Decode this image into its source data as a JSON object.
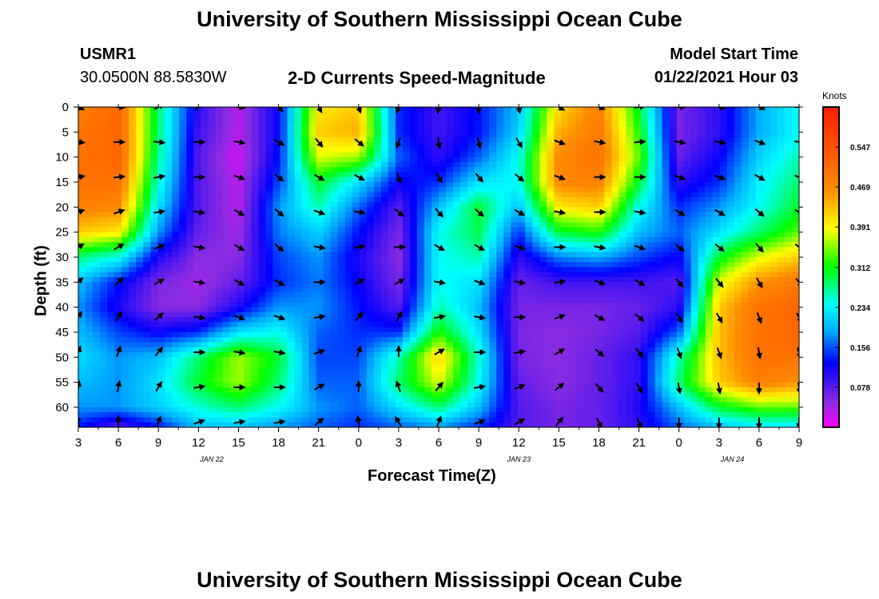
{
  "page": {
    "title_top": "University of Southern Mississippi Ocean Cube",
    "title_bottom": "University of Southern Mississippi Ocean Cube",
    "station": "USMR1",
    "location": "30.0500N 88.5830W",
    "plot_title": "2-D Currents Speed-Magnitude",
    "model_start_label": "Model Start Time",
    "model_start_value": "01/22/2021 Hour 03"
  },
  "chart_data": {
    "type": "heatmap",
    "title": "2-D Currents Speed-Magnitude",
    "xlabel": "Forecast Time(Z)",
    "ylabel": "Depth (ft)",
    "x_tick_labels": [
      "3",
      "6",
      "9",
      "12",
      "15",
      "18",
      "21",
      "0",
      "3",
      "6",
      "9",
      "12",
      "15",
      "18",
      "21",
      "0",
      "3",
      "6",
      "9"
    ],
    "x_range_hours": [
      0,
      54
    ],
    "date_labels": [
      {
        "text": "JAN 22",
        "hour_offset": 10
      },
      {
        "text": "JAN 23",
        "hour_offset": 33
      },
      {
        "text": "JAN 24",
        "hour_offset": 49
      }
    ],
    "y_ticks": [
      0,
      5,
      10,
      15,
      20,
      25,
      30,
      35,
      40,
      45,
      50,
      55,
      60
    ],
    "ylim": [
      0,
      64
    ],
    "y_inverted": true,
    "colorbar": {
      "unit": "Knots",
      "tick_labels": [
        "0.547",
        "0.469",
        "0.391",
        "0.312",
        "0.234",
        "0.156",
        "0.078"
      ],
      "tick_values": [
        0.547,
        0.469,
        0.391,
        0.312,
        0.234,
        0.156,
        0.078
      ],
      "range": [
        0.0,
        0.625
      ],
      "colors": [
        "#ff00ff",
        "#8a2be2",
        "#0000ff",
        "#00ffff",
        "#00ff00",
        "#ffff00",
        "#ff8c00",
        "#ff2000"
      ]
    },
    "approx_speed_field_knots": {
      "time_hours": [
        0,
        3,
        6,
        9,
        12,
        15,
        18,
        21,
        24,
        27,
        30,
        33,
        36,
        39,
        42,
        45,
        48,
        51,
        54
      ],
      "depth_ft": [
        0,
        5,
        10,
        15,
        20,
        25,
        30,
        35,
        40,
        45,
        50,
        55,
        60,
        64
      ],
      "rows": [
        [
          0.48,
          0.52,
          0.28,
          0.1,
          0.03,
          0.12,
          0.4,
          0.42,
          0.14,
          0.09,
          0.13,
          0.2,
          0.41,
          0.48,
          0.3,
          0.06,
          0.1,
          0.19,
          0.24
        ],
        [
          0.5,
          0.52,
          0.28,
          0.09,
          0.03,
          0.12,
          0.42,
          0.44,
          0.14,
          0.09,
          0.13,
          0.21,
          0.44,
          0.49,
          0.32,
          0.06,
          0.1,
          0.19,
          0.24
        ],
        [
          0.5,
          0.52,
          0.27,
          0.08,
          0.02,
          0.13,
          0.38,
          0.36,
          0.16,
          0.1,
          0.16,
          0.24,
          0.47,
          0.5,
          0.34,
          0.07,
          0.12,
          0.21,
          0.26
        ],
        [
          0.5,
          0.5,
          0.25,
          0.08,
          0.03,
          0.15,
          0.3,
          0.22,
          0.12,
          0.14,
          0.22,
          0.24,
          0.47,
          0.48,
          0.3,
          0.1,
          0.14,
          0.23,
          0.28
        ],
        [
          0.48,
          0.47,
          0.22,
          0.08,
          0.03,
          0.18,
          0.26,
          0.16,
          0.08,
          0.2,
          0.3,
          0.2,
          0.4,
          0.42,
          0.24,
          0.14,
          0.18,
          0.24,
          0.3
        ],
        [
          0.42,
          0.4,
          0.18,
          0.07,
          0.04,
          0.17,
          0.21,
          0.13,
          0.06,
          0.24,
          0.29,
          0.14,
          0.3,
          0.32,
          0.2,
          0.16,
          0.22,
          0.28,
          0.34
        ],
        [
          0.28,
          0.24,
          0.11,
          0.05,
          0.05,
          0.15,
          0.18,
          0.11,
          0.05,
          0.24,
          0.26,
          0.1,
          0.17,
          0.19,
          0.15,
          0.12,
          0.3,
          0.38,
          0.42
        ],
        [
          0.2,
          0.13,
          0.06,
          0.04,
          0.07,
          0.14,
          0.17,
          0.12,
          0.06,
          0.24,
          0.22,
          0.07,
          0.09,
          0.09,
          0.09,
          0.08,
          0.38,
          0.46,
          0.49
        ],
        [
          0.18,
          0.11,
          0.05,
          0.05,
          0.11,
          0.18,
          0.18,
          0.13,
          0.08,
          0.26,
          0.2,
          0.06,
          0.06,
          0.06,
          0.07,
          0.1,
          0.42,
          0.5,
          0.52
        ],
        [
          0.2,
          0.15,
          0.12,
          0.14,
          0.22,
          0.24,
          0.16,
          0.14,
          0.14,
          0.32,
          0.22,
          0.06,
          0.05,
          0.06,
          0.08,
          0.16,
          0.43,
          0.5,
          0.52
        ],
        [
          0.22,
          0.18,
          0.2,
          0.28,
          0.36,
          0.3,
          0.15,
          0.15,
          0.26,
          0.42,
          0.25,
          0.06,
          0.05,
          0.07,
          0.1,
          0.26,
          0.43,
          0.5,
          0.5
        ],
        [
          0.2,
          0.18,
          0.22,
          0.3,
          0.36,
          0.28,
          0.16,
          0.16,
          0.28,
          0.38,
          0.24,
          0.07,
          0.05,
          0.07,
          0.1,
          0.28,
          0.42,
          0.48,
          0.46
        ],
        [
          0.18,
          0.18,
          0.21,
          0.25,
          0.28,
          0.24,
          0.18,
          0.16,
          0.22,
          0.28,
          0.2,
          0.08,
          0.06,
          0.07,
          0.11,
          0.2,
          0.3,
          0.34,
          0.34
        ],
        [
          0.13,
          0.08,
          0.13,
          0.2,
          0.2,
          0.18,
          0.16,
          0.14,
          0.16,
          0.18,
          0.14,
          0.08,
          0.06,
          0.07,
          0.1,
          0.16,
          0.2,
          0.22,
          0.22
        ]
      ]
    },
    "vectors_note": "Black arrows show current direction at sampled time/depth points"
  }
}
